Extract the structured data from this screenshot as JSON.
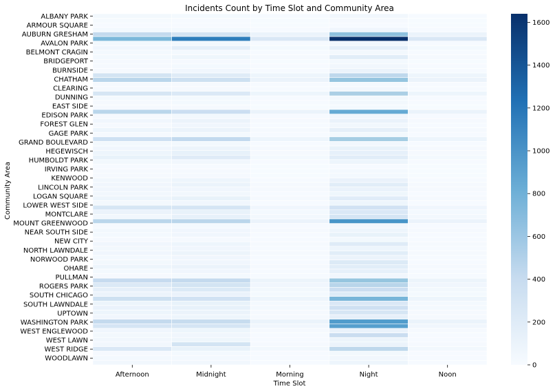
{
  "chart_data": {
    "type": "heatmap",
    "title": "Incidents Count by Time Slot and Community Area",
    "xlabel": "Time Slot",
    "ylabel": "Community Area",
    "x_categories": [
      "Afternoon",
      "Midnight",
      "Morning",
      "Night",
      "Noon"
    ],
    "y_tick_labels": [
      "ALBANY PARK",
      "ARMOUR SQUARE",
      "AUBURN GRESHAM",
      "AVALON PARK",
      "BELMONT CRAGIN",
      "BRIDGEPORT",
      "BURNSIDE",
      "CHATHAM",
      "CLEARING",
      "DUNNING",
      "EAST SIDE",
      "EDISON PARK",
      "FOREST GLEN",
      "GAGE PARK",
      "GRAND BOULEVARD",
      "HEGEWISCH",
      "HUMBOLDT PARK",
      "IRVING PARK",
      "KENWOOD",
      "LINCOLN PARK",
      "LOGAN SQUARE",
      "LOWER WEST SIDE",
      "MONTCLARE",
      "MOUNT GREENWOOD",
      "NEAR SOUTH SIDE",
      "NEW CITY",
      "NORTH LAWNDALE",
      "NORWOOD PARK",
      "OHARE",
      "PULLMAN",
      "ROGERS PARK",
      "SOUTH CHICAGO",
      "SOUTH LAWNDALE",
      "UPTOWN",
      "WASHINGTON PARK",
      "WEST ENGLEWOOD",
      "WEST LAWN",
      "WEST RIDGE",
      "WOODLAWN"
    ],
    "values": [
      [
        40,
        30,
        10,
        50,
        10
      ],
      [
        15,
        10,
        5,
        20,
        5
      ],
      [
        10,
        10,
        5,
        10,
        5
      ],
      [
        30,
        30,
        10,
        60,
        10
      ],
      [
        420,
        300,
        100,
        680,
        100
      ],
      [
        750,
        1150,
        250,
        1640,
        250
      ],
      [
        40,
        40,
        10,
        50,
        10
      ],
      [
        60,
        150,
        30,
        150,
        30
      ],
      [
        30,
        30,
        10,
        40,
        10
      ],
      [
        30,
        70,
        20,
        180,
        20
      ],
      [
        20,
        20,
        5,
        30,
        5
      ],
      [
        20,
        30,
        10,
        50,
        10
      ],
      [
        20,
        60,
        10,
        100,
        10
      ],
      [
        300,
        200,
        80,
        450,
        80
      ],
      [
        470,
        350,
        100,
        650,
        100
      ],
      [
        20,
        20,
        10,
        30,
        10
      ],
      [
        20,
        20,
        10,
        50,
        10
      ],
      [
        270,
        230,
        80,
        550,
        80
      ],
      [
        30,
        30,
        10,
        40,
        10
      ],
      [
        20,
        30,
        10,
        40,
        10
      ],
      [
        20,
        20,
        5,
        30,
        5
      ],
      [
        470,
        370,
        100,
        850,
        100
      ],
      [
        20,
        40,
        10,
        60,
        10
      ],
      [
        60,
        100,
        20,
        110,
        20
      ],
      [
        20,
        60,
        10,
        50,
        10
      ],
      [
        80,
        100,
        20,
        150,
        20
      ],
      [
        20,
        30,
        10,
        40,
        10
      ],
      [
        340,
        430,
        80,
        580,
        80
      ],
      [
        40,
        40,
        10,
        50,
        10
      ],
      [
        60,
        90,
        20,
        120,
        20
      ],
      [
        80,
        130,
        20,
        140,
        20
      ],
      [
        120,
        200,
        30,
        180,
        30
      ],
      [
        40,
        50,
        10,
        80,
        10
      ],
      [
        10,
        10,
        5,
        10,
        5
      ],
      [
        20,
        20,
        5,
        30,
        5
      ],
      [
        20,
        20,
        5,
        30,
        5
      ],
      [
        50,
        80,
        10,
        110,
        10
      ],
      [
        60,
        100,
        20,
        180,
        20
      ],
      [
        60,
        60,
        20,
        110,
        20
      ],
      [
        50,
        50,
        10,
        70,
        10
      ],
      [
        80,
        120,
        20,
        190,
        20
      ],
      [
        40,
        60,
        10,
        80,
        10
      ],
      [
        270,
        280,
        60,
        320,
        60
      ],
      [
        100,
        120,
        30,
        240,
        30
      ],
      [
        50,
        130,
        40,
        280,
        40
      ],
      [
        470,
        470,
        100,
        1000,
        100
      ],
      [
        20,
        30,
        10,
        50,
        10
      ],
      [
        40,
        60,
        20,
        80,
        20
      ],
      [
        30,
        60,
        10,
        120,
        10
      ],
      [
        20,
        20,
        10,
        40,
        10
      ],
      [
        60,
        80,
        20,
        200,
        20
      ],
      [
        40,
        60,
        10,
        80,
        10
      ],
      [
        60,
        90,
        20,
        180,
        20
      ],
      [
        30,
        60,
        10,
        100,
        10
      ],
      [
        40,
        60,
        10,
        220,
        10
      ],
      [
        80,
        100,
        20,
        180,
        20
      ],
      [
        30,
        60,
        10,
        140,
        10
      ],
      [
        20,
        30,
        10,
        60,
        10
      ],
      [
        410,
        420,
        90,
        650,
        90
      ],
      [
        230,
        300,
        60,
        480,
        60
      ],
      [
        150,
        230,
        40,
        380,
        40
      ],
      [
        100,
        110,
        30,
        210,
        30
      ],
      [
        350,
        320,
        80,
        770,
        80
      ],
      [
        90,
        120,
        30,
        240,
        30
      ],
      [
        110,
        130,
        30,
        340,
        30
      ],
      [
        80,
        100,
        20,
        270,
        20
      ],
      [
        60,
        80,
        20,
        150,
        20
      ],
      [
        420,
        400,
        100,
        950,
        100
      ],
      [
        280,
        280,
        60,
        920,
        60
      ],
      [
        60,
        80,
        20,
        110,
        20
      ],
      [
        40,
        60,
        10,
        380,
        10
      ],
      [
        50,
        70,
        10,
        90,
        10
      ],
      [
        50,
        300,
        20,
        100,
        20
      ],
      [
        240,
        120,
        40,
        450,
        40
      ],
      [
        20,
        30,
        10,
        40,
        10
      ],
      [
        30,
        30,
        10,
        50,
        10
      ],
      [
        50,
        50,
        10,
        80,
        10
      ]
    ],
    "colorbar": {
      "min": 0,
      "max": 1640,
      "ticks": [
        0,
        200,
        400,
        600,
        800,
        1000,
        1200,
        1400,
        1600
      ]
    },
    "colormap": "Blues",
    "colors": {
      "low": "#f7fbff",
      "mid1": "#c6dbef",
      "mid2": "#6baed6",
      "mid3": "#2171b5",
      "high": "#08306b",
      "cell_line": "#ffffff"
    }
  }
}
